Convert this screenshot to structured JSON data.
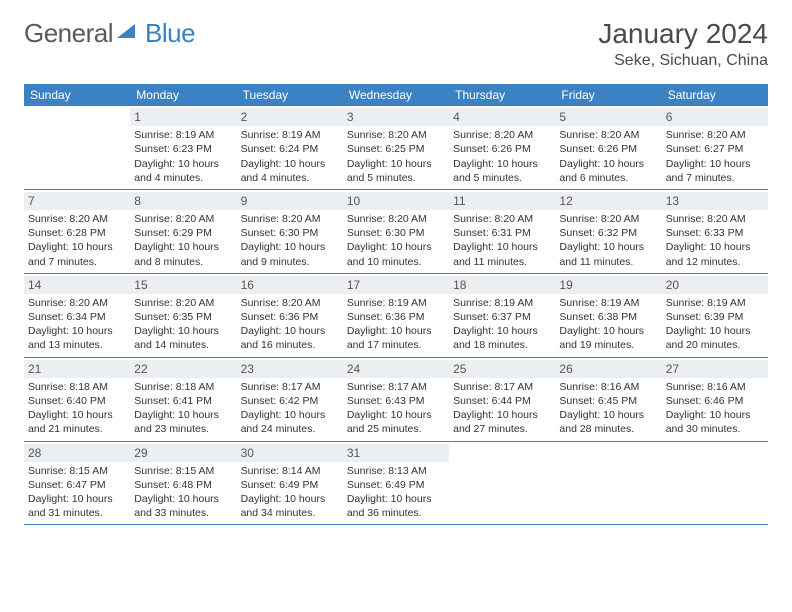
{
  "logo": {
    "brand_gray": "General",
    "brand_blue": "Blue"
  },
  "title": "January 2024",
  "location": "Seke, Sichuan, China",
  "day_headers": [
    "Sunday",
    "Monday",
    "Tuesday",
    "Wednesday",
    "Thursday",
    "Friday",
    "Saturday"
  ],
  "colors": {
    "header_bg": "#3b82c4",
    "header_text": "#ffffff",
    "daynum_bg": "#eceff1",
    "border": "#3b82c4",
    "text": "#333333",
    "logo_gray": "#5a5a5a",
    "logo_blue": "#3b82c4"
  },
  "weeks": [
    [
      {
        "day": "",
        "sunrise": "",
        "sunset": "",
        "daylight1": "",
        "daylight2": ""
      },
      {
        "day": "1",
        "sunrise": "Sunrise: 8:19 AM",
        "sunset": "Sunset: 6:23 PM",
        "daylight1": "Daylight: 10 hours",
        "daylight2": "and 4 minutes."
      },
      {
        "day": "2",
        "sunrise": "Sunrise: 8:19 AM",
        "sunset": "Sunset: 6:24 PM",
        "daylight1": "Daylight: 10 hours",
        "daylight2": "and 4 minutes."
      },
      {
        "day": "3",
        "sunrise": "Sunrise: 8:20 AM",
        "sunset": "Sunset: 6:25 PM",
        "daylight1": "Daylight: 10 hours",
        "daylight2": "and 5 minutes."
      },
      {
        "day": "4",
        "sunrise": "Sunrise: 8:20 AM",
        "sunset": "Sunset: 6:26 PM",
        "daylight1": "Daylight: 10 hours",
        "daylight2": "and 5 minutes."
      },
      {
        "day": "5",
        "sunrise": "Sunrise: 8:20 AM",
        "sunset": "Sunset: 6:26 PM",
        "daylight1": "Daylight: 10 hours",
        "daylight2": "and 6 minutes."
      },
      {
        "day": "6",
        "sunrise": "Sunrise: 8:20 AM",
        "sunset": "Sunset: 6:27 PM",
        "daylight1": "Daylight: 10 hours",
        "daylight2": "and 7 minutes."
      }
    ],
    [
      {
        "day": "7",
        "sunrise": "Sunrise: 8:20 AM",
        "sunset": "Sunset: 6:28 PM",
        "daylight1": "Daylight: 10 hours",
        "daylight2": "and 7 minutes."
      },
      {
        "day": "8",
        "sunrise": "Sunrise: 8:20 AM",
        "sunset": "Sunset: 6:29 PM",
        "daylight1": "Daylight: 10 hours",
        "daylight2": "and 8 minutes."
      },
      {
        "day": "9",
        "sunrise": "Sunrise: 8:20 AM",
        "sunset": "Sunset: 6:30 PM",
        "daylight1": "Daylight: 10 hours",
        "daylight2": "and 9 minutes."
      },
      {
        "day": "10",
        "sunrise": "Sunrise: 8:20 AM",
        "sunset": "Sunset: 6:30 PM",
        "daylight1": "Daylight: 10 hours",
        "daylight2": "and 10 minutes."
      },
      {
        "day": "11",
        "sunrise": "Sunrise: 8:20 AM",
        "sunset": "Sunset: 6:31 PM",
        "daylight1": "Daylight: 10 hours",
        "daylight2": "and 11 minutes."
      },
      {
        "day": "12",
        "sunrise": "Sunrise: 8:20 AM",
        "sunset": "Sunset: 6:32 PM",
        "daylight1": "Daylight: 10 hours",
        "daylight2": "and 11 minutes."
      },
      {
        "day": "13",
        "sunrise": "Sunrise: 8:20 AM",
        "sunset": "Sunset: 6:33 PM",
        "daylight1": "Daylight: 10 hours",
        "daylight2": "and 12 minutes."
      }
    ],
    [
      {
        "day": "14",
        "sunrise": "Sunrise: 8:20 AM",
        "sunset": "Sunset: 6:34 PM",
        "daylight1": "Daylight: 10 hours",
        "daylight2": "and 13 minutes."
      },
      {
        "day": "15",
        "sunrise": "Sunrise: 8:20 AM",
        "sunset": "Sunset: 6:35 PM",
        "daylight1": "Daylight: 10 hours",
        "daylight2": "and 14 minutes."
      },
      {
        "day": "16",
        "sunrise": "Sunrise: 8:20 AM",
        "sunset": "Sunset: 6:36 PM",
        "daylight1": "Daylight: 10 hours",
        "daylight2": "and 16 minutes."
      },
      {
        "day": "17",
        "sunrise": "Sunrise: 8:19 AM",
        "sunset": "Sunset: 6:36 PM",
        "daylight1": "Daylight: 10 hours",
        "daylight2": "and 17 minutes."
      },
      {
        "day": "18",
        "sunrise": "Sunrise: 8:19 AM",
        "sunset": "Sunset: 6:37 PM",
        "daylight1": "Daylight: 10 hours",
        "daylight2": "and 18 minutes."
      },
      {
        "day": "19",
        "sunrise": "Sunrise: 8:19 AM",
        "sunset": "Sunset: 6:38 PM",
        "daylight1": "Daylight: 10 hours",
        "daylight2": "and 19 minutes."
      },
      {
        "day": "20",
        "sunrise": "Sunrise: 8:19 AM",
        "sunset": "Sunset: 6:39 PM",
        "daylight1": "Daylight: 10 hours",
        "daylight2": "and 20 minutes."
      }
    ],
    [
      {
        "day": "21",
        "sunrise": "Sunrise: 8:18 AM",
        "sunset": "Sunset: 6:40 PM",
        "daylight1": "Daylight: 10 hours",
        "daylight2": "and 21 minutes."
      },
      {
        "day": "22",
        "sunrise": "Sunrise: 8:18 AM",
        "sunset": "Sunset: 6:41 PM",
        "daylight1": "Daylight: 10 hours",
        "daylight2": "and 23 minutes."
      },
      {
        "day": "23",
        "sunrise": "Sunrise: 8:17 AM",
        "sunset": "Sunset: 6:42 PM",
        "daylight1": "Daylight: 10 hours",
        "daylight2": "and 24 minutes."
      },
      {
        "day": "24",
        "sunrise": "Sunrise: 8:17 AM",
        "sunset": "Sunset: 6:43 PM",
        "daylight1": "Daylight: 10 hours",
        "daylight2": "and 25 minutes."
      },
      {
        "day": "25",
        "sunrise": "Sunrise: 8:17 AM",
        "sunset": "Sunset: 6:44 PM",
        "daylight1": "Daylight: 10 hours",
        "daylight2": "and 27 minutes."
      },
      {
        "day": "26",
        "sunrise": "Sunrise: 8:16 AM",
        "sunset": "Sunset: 6:45 PM",
        "daylight1": "Daylight: 10 hours",
        "daylight2": "and 28 minutes."
      },
      {
        "day": "27",
        "sunrise": "Sunrise: 8:16 AM",
        "sunset": "Sunset: 6:46 PM",
        "daylight1": "Daylight: 10 hours",
        "daylight2": "and 30 minutes."
      }
    ],
    [
      {
        "day": "28",
        "sunrise": "Sunrise: 8:15 AM",
        "sunset": "Sunset: 6:47 PM",
        "daylight1": "Daylight: 10 hours",
        "daylight2": "and 31 minutes."
      },
      {
        "day": "29",
        "sunrise": "Sunrise: 8:15 AM",
        "sunset": "Sunset: 6:48 PM",
        "daylight1": "Daylight: 10 hours",
        "daylight2": "and 33 minutes."
      },
      {
        "day": "30",
        "sunrise": "Sunrise: 8:14 AM",
        "sunset": "Sunset: 6:49 PM",
        "daylight1": "Daylight: 10 hours",
        "daylight2": "and 34 minutes."
      },
      {
        "day": "31",
        "sunrise": "Sunrise: 8:13 AM",
        "sunset": "Sunset: 6:49 PM",
        "daylight1": "Daylight: 10 hours",
        "daylight2": "and 36 minutes."
      },
      {
        "day": "",
        "sunrise": "",
        "sunset": "",
        "daylight1": "",
        "daylight2": ""
      },
      {
        "day": "",
        "sunrise": "",
        "sunset": "",
        "daylight1": "",
        "daylight2": ""
      },
      {
        "day": "",
        "sunrise": "",
        "sunset": "",
        "daylight1": "",
        "daylight2": ""
      }
    ]
  ]
}
